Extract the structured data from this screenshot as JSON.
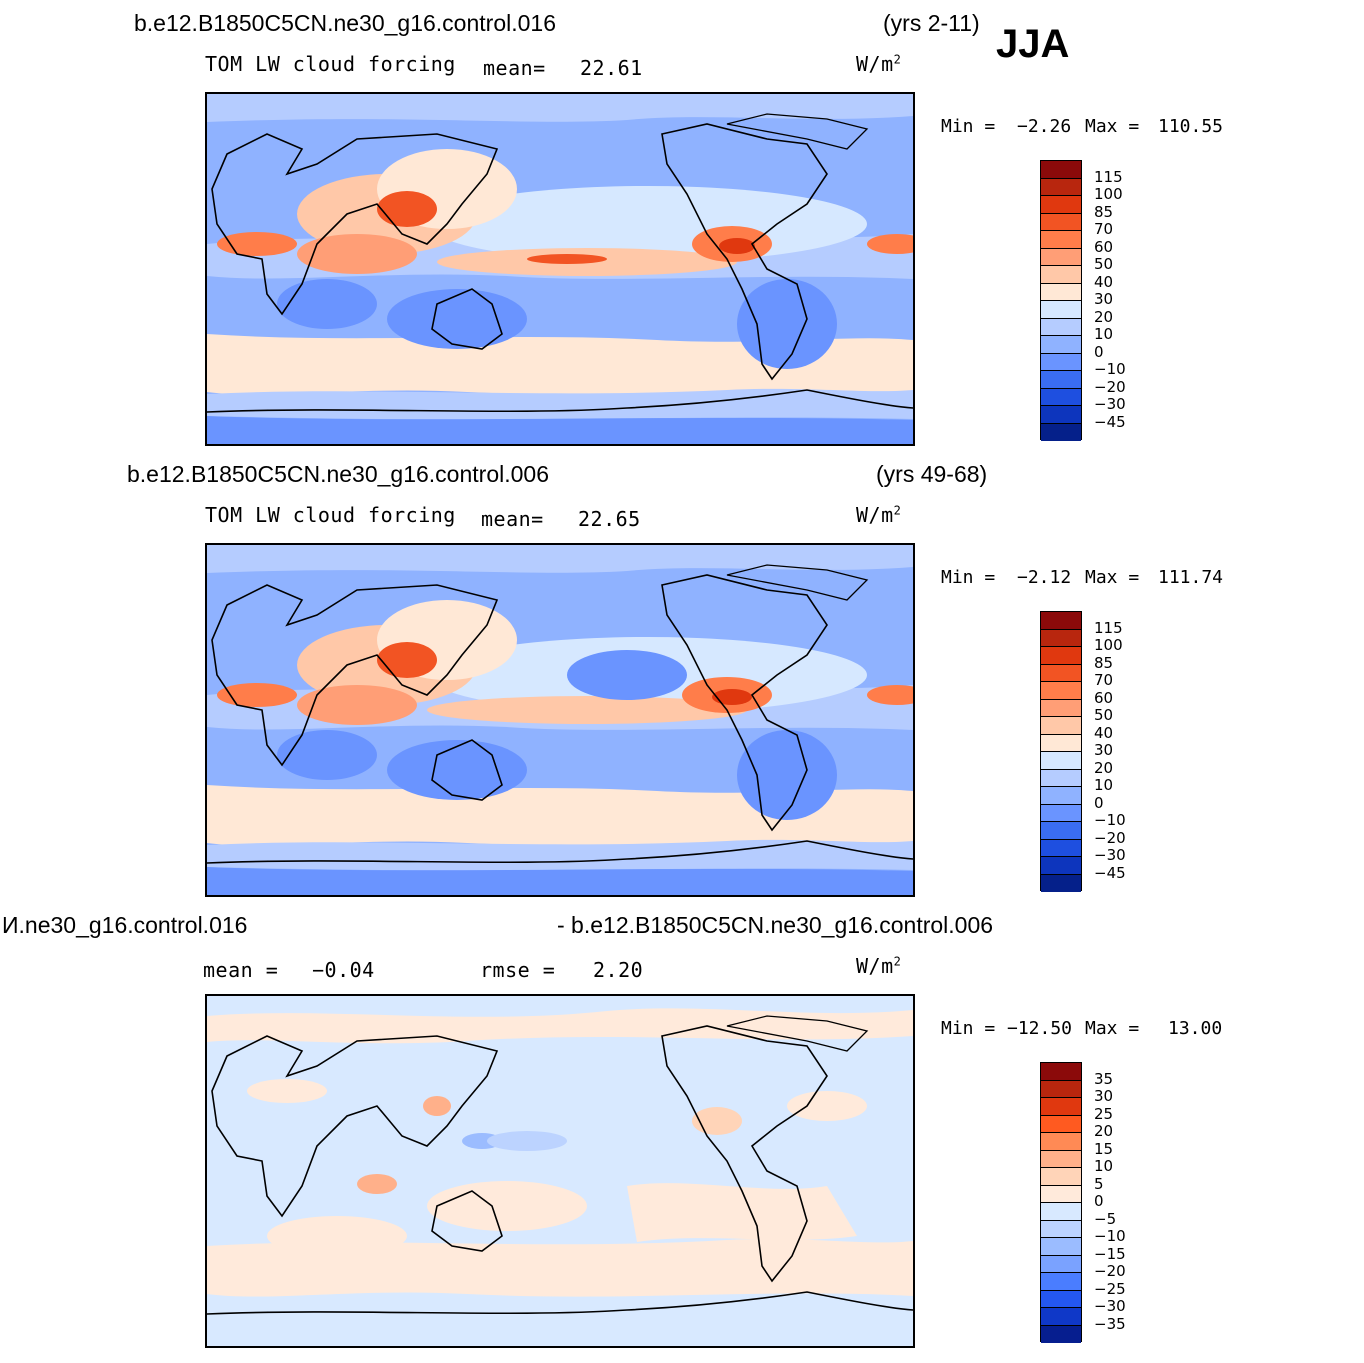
{
  "season": "JJA",
  "panels": [
    {
      "case": "b.e12.B1850C5CN.ne30_g16.control.016",
      "years": "(yrs 2-11)",
      "variable": "TOM  LW  cloud  forcing",
      "mean_label": "mean=",
      "mean_value": "22.61",
      "units": "W/m",
      "units_exp": "2",
      "min_label": "Min  =",
      "min_value": "−2.26",
      "max_label": "Max  =",
      "max_value": "110.55",
      "colorbar": {
        "colors": [
          "#8b0a0a",
          "#b8260e",
          "#e0380f",
          "#f25423",
          "#ff7d4a",
          "#ff9e76",
          "#ffc8a8",
          "#ffe8d6",
          "#d6e8ff",
          "#b5ccff",
          "#8fb2ff",
          "#6a94ff",
          "#3a6df2",
          "#1e4fe0",
          "#0d35bd",
          "#05208a"
        ],
        "labels": [
          "115",
          "100",
          "85",
          "70",
          "60",
          "50",
          "40",
          "30",
          "20",
          "10",
          "0",
          "−10",
          "−20",
          "−30",
          "−45"
        ]
      }
    },
    {
      "case": "b.e12.B1850C5CN.ne30_g16.control.006",
      "years": "(yrs 49-68)",
      "variable": "TOM  LW  cloud  forcing",
      "mean_label": "mean=",
      "mean_value": "22.65",
      "units": "W/m",
      "units_exp": "2",
      "min_label": "Min  =",
      "min_value": "−2.12",
      "max_label": "Max  =",
      "max_value": "111.74",
      "colorbar": {
        "colors": [
          "#8b0a0a",
          "#b8260e",
          "#e0380f",
          "#f25423",
          "#ff7d4a",
          "#ff9e76",
          "#ffc8a8",
          "#ffe8d6",
          "#d6e8ff",
          "#b5ccff",
          "#8fb2ff",
          "#6a94ff",
          "#3a6df2",
          "#1e4fe0",
          "#0d35bd",
          "#05208a"
        ],
        "labels": [
          "115",
          "100",
          "85",
          "70",
          "60",
          "50",
          "40",
          "30",
          "20",
          "10",
          "0",
          "−10",
          "−20",
          "−30",
          "−45"
        ]
      }
    },
    {
      "case_left": "И.ne30_g16.control.016",
      "case_right": "- b.e12.B1850C5CN.ne30_g16.control.006",
      "mean_label": "mean  =",
      "mean_value": "−0.04",
      "rmse_label": "rmse  =",
      "rmse_value": "2.20",
      "units": "W/m",
      "units_exp": "2",
      "min_label": "Min  =",
      "min_value": "−12.50",
      "max_label": "Max  =",
      "max_value": "13.00",
      "colorbar": {
        "colors": [
          "#8b0a0a",
          "#b8260e",
          "#e0380f",
          "#ff5a20",
          "#ff8a55",
          "#ffb08a",
          "#ffd4b8",
          "#ffeadb",
          "#d8e9ff",
          "#bcd3ff",
          "#9bbcff",
          "#7aa2ff",
          "#4a7dff",
          "#2457f0",
          "#0f38c8",
          "#061e8f"
        ],
        "labels": [
          "35",
          "30",
          "25",
          "20",
          "15",
          "10",
          "5",
          "0",
          "−5",
          "−10",
          "−15",
          "−20",
          "−25",
          "−30",
          "−35"
        ]
      }
    }
  ]
}
